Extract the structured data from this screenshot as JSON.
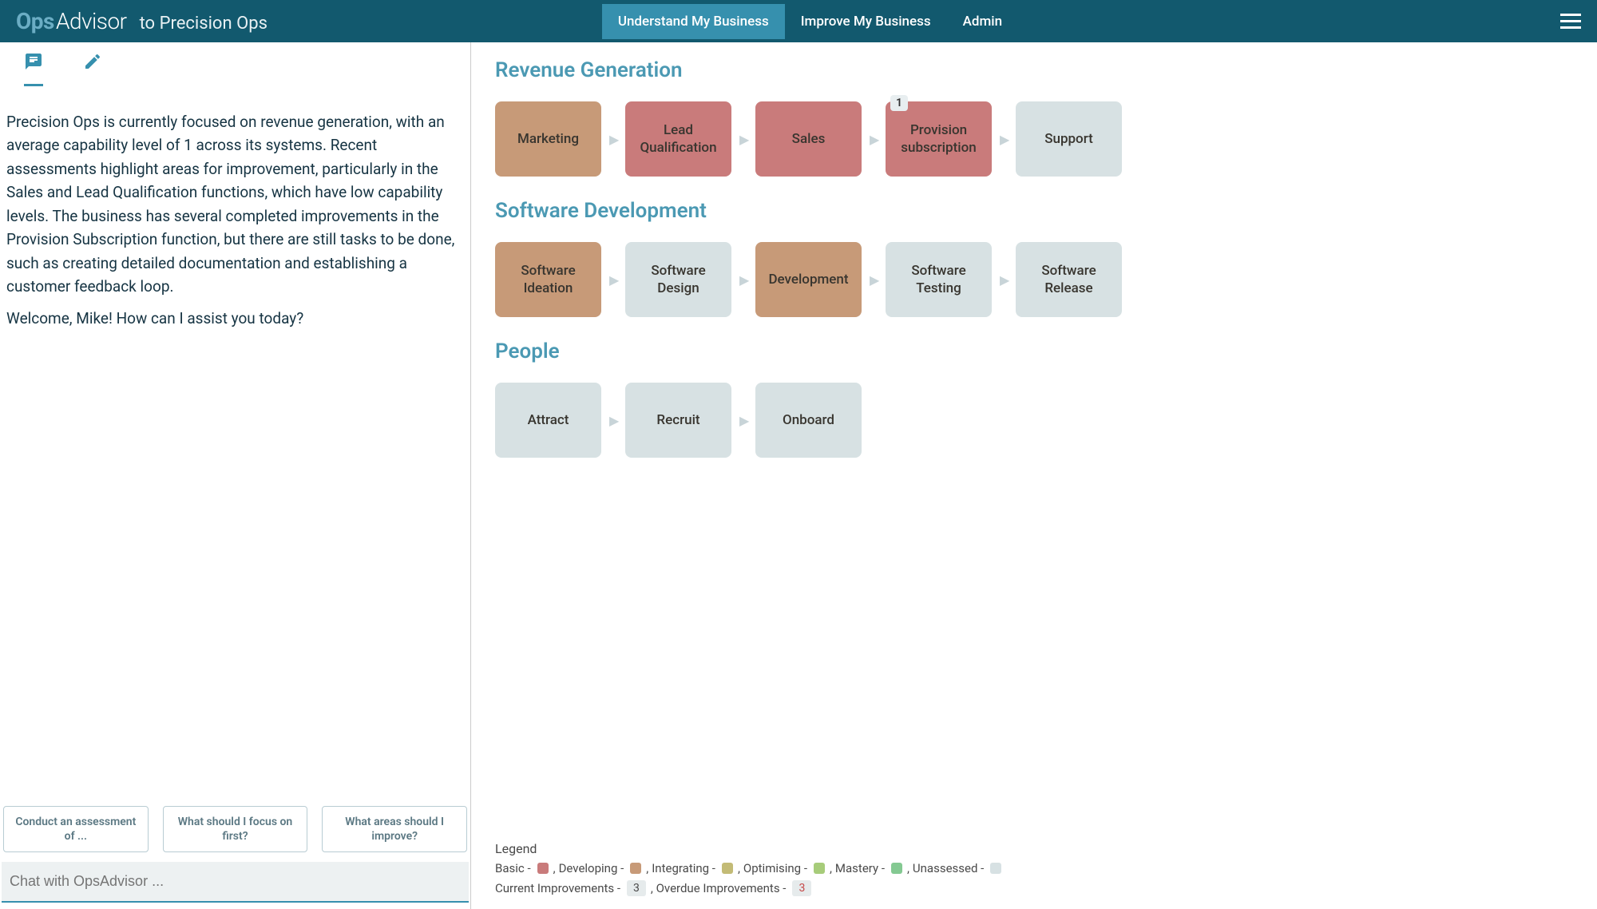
{
  "header": {
    "logo_ops": "Ops",
    "logo_advisor": "Advisor",
    "tagline": "to Precision Ops",
    "nav": [
      {
        "label": "Understand My Business",
        "active": true
      },
      {
        "label": "Improve My Business",
        "active": false
      },
      {
        "label": "Admin",
        "active": false
      }
    ]
  },
  "chat": {
    "paragraphs": [
      "Precision Ops is currently focused on revenue generation, with an average capability level of 1 across its systems. Recent assessments highlight areas for improvement, particularly in the Sales and Lead Qualification functions, which have low capability levels. The business has several completed improvements in the Provision Subscription function, but there are still tasks to be done, such as creating detailed documentation and establishing a customer feedback loop.",
      "Welcome, Mike! How can I assist you today?"
    ],
    "suggestions": [
      "Conduct an assessment of ...",
      "What should I focus on first?",
      "What areas should I improve?"
    ],
    "input_placeholder": "Chat with OpsAdvisor ..."
  },
  "colors": {
    "basic": "#c97b7b",
    "developing": "#c79a78",
    "integrating": "#c3bb76",
    "optimising": "#a7cc7a",
    "mastery": "#84c992",
    "unassessed": "#d7e1e3"
  },
  "sections": [
    {
      "title": "Revenue Generation",
      "cards": [
        {
          "label": "Marketing",
          "level": "developing",
          "badge": null
        },
        {
          "label": "Lead Qualification",
          "level": "basic",
          "badge": null
        },
        {
          "label": "Sales",
          "level": "basic",
          "badge": null
        },
        {
          "label": "Provision subscription",
          "level": "basic",
          "badge": "1"
        },
        {
          "label": "Support",
          "level": "unassessed",
          "badge": null
        }
      ]
    },
    {
      "title": "Software Development",
      "cards": [
        {
          "label": "Software Ideation",
          "level": "developing",
          "badge": null
        },
        {
          "label": "Software Design",
          "level": "unassessed",
          "badge": null
        },
        {
          "label": "Development",
          "level": "developing",
          "badge": null
        },
        {
          "label": "Software Testing",
          "level": "unassessed",
          "badge": null
        },
        {
          "label": "Software Release",
          "level": "unassessed",
          "badge": null
        }
      ]
    },
    {
      "title": "People",
      "cards": [
        {
          "label": "Attract",
          "level": "unassessed",
          "badge": null
        },
        {
          "label": "Recruit",
          "level": "unassessed",
          "badge": null
        },
        {
          "label": "Onboard",
          "level": "unassessed",
          "badge": null
        }
      ]
    }
  ],
  "legend": {
    "title": "Legend",
    "levels": [
      {
        "label": "Basic",
        "key": "basic"
      },
      {
        "label": "Developing",
        "key": "developing"
      },
      {
        "label": "Integrating",
        "key": "integrating"
      },
      {
        "label": "Optimising",
        "key": "optimising"
      },
      {
        "label": "Mastery",
        "key": "mastery"
      },
      {
        "label": "Unassessed",
        "key": "unassessed"
      }
    ],
    "current_improvements_label": "Current Improvements",
    "current_improvements_count": "3",
    "overdue_improvements_label": "Overdue Improvements",
    "overdue_improvements_count": "3"
  }
}
